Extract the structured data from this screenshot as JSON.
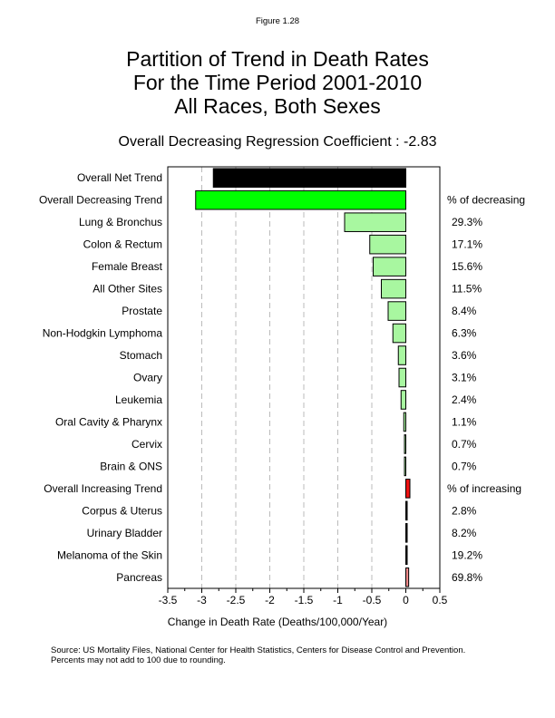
{
  "chart_data": {
    "type": "bar",
    "orientation": "horizontal",
    "figure_label": "Figure 1.28",
    "title": [
      "Partition of Trend in Death Rates",
      "For the Time Period 2001-2010",
      "All Races, Both Sexes"
    ],
    "subtitle": "Overall Decreasing Regression Coefficient : -2.83",
    "xlabel": "Change in Death Rate (Deaths/100,000/Year)",
    "xlim": [
      -3.5,
      0.5
    ],
    "xticks": [
      "-3.5",
      "-3",
      "-2.5",
      "-2",
      "-1.5",
      "-1",
      "-0.5",
      "0",
      "0.5"
    ],
    "grid": "vertical dashed",
    "categories": [
      "Overall Net Trend",
      "Overall Decreasing Trend",
      "Lung & Bronchus",
      "Colon & Rectum",
      "Female Breast",
      "All Other Sites",
      "Prostate",
      "Non-Hodgkin Lymphoma",
      "Stomach",
      "Ovary",
      "Leukemia",
      "Oral Cavity & Pharynx",
      "Cervix",
      "Brain & ONS",
      "Overall Increasing Trend",
      "Corpus & Uterus",
      "Urinary Bladder",
      "Melanoma of the Skin",
      "Pancreas"
    ],
    "values": [
      -2.83,
      -3.09,
      -0.9,
      -0.53,
      -0.48,
      -0.36,
      -0.26,
      -0.19,
      -0.11,
      -0.1,
      -0.07,
      -0.03,
      -0.02,
      -0.02,
      0.06,
      0.002,
      0.005,
      0.012,
      0.042
    ],
    "colors": [
      "#000000",
      "#00ff00",
      "#a8f7a0",
      "#a8f7a0",
      "#a8f7a0",
      "#a8f7a0",
      "#a8f7a0",
      "#a8f7a0",
      "#a8f7a0",
      "#a8f7a0",
      "#a8f7a0",
      "#a8f7a0",
      "#a8f7a0",
      "#a8f7a0",
      "#ee1111",
      "#000000",
      "#000000",
      "#000000",
      "#f08a8a"
    ],
    "right_labels": [
      "",
      "% of decreasing",
      "29.3%",
      "17.1%",
      "15.6%",
      "11.5%",
      "8.4%",
      "6.3%",
      "3.6%",
      "3.1%",
      "2.4%",
      "1.1%",
      "0.7%",
      "0.7%",
      "% of increasing",
      "2.8%",
      "8.2%",
      "19.2%",
      "69.8%"
    ]
  },
  "footer": {
    "source": "Source:  US Mortality Files, National Center for Health Statistics, Centers for Disease Control and Prevention.",
    "note": "Percents may not add to 100 due to rounding."
  }
}
